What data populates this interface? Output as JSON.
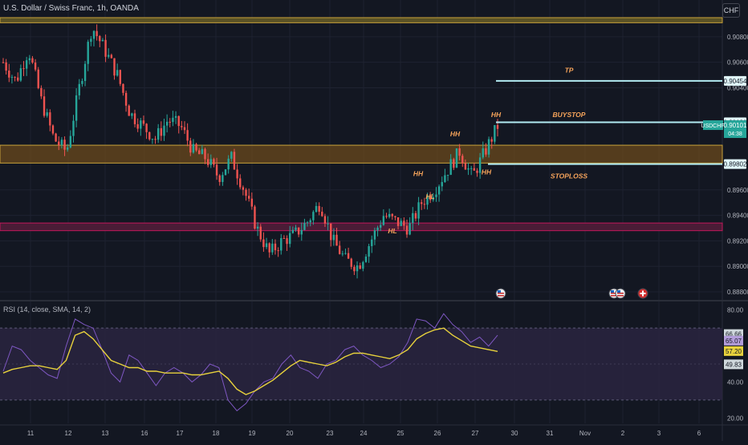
{
  "header": {
    "symbol": "U.S. Dollar / Swiss Franc, 1h, OANDA",
    "currency": "CHF"
  },
  "rsi_header": "RSI (14, close, SMA, 14, 2)",
  "colors": {
    "background": "#131722",
    "grid": "#1e2230",
    "up": "#26a69a",
    "down": "#ef5350",
    "orange_zone": "#6b4a1c",
    "orange_line": "#c8a13a",
    "pink_zone": "#4a1c36",
    "pink_line": "#c2185b",
    "tp_line": "#b2ebf2",
    "annotation": "#f5a35a",
    "rsi_line": "#7e57c2",
    "rsi_ma": "#e8d23c",
    "rsi_band": "#2a2440"
  },
  "chart_data": [
    {
      "type": "candlestick",
      "name": "USDCHF",
      "x_tick_labels": [
        "11",
        "12",
        "13",
        "16",
        "17",
        "18",
        "19",
        "20",
        "23",
        "24",
        "25",
        "26",
        "27",
        "30",
        "31",
        "Nov",
        "2",
        "3",
        "6"
      ],
      "price_ticks": [
        "0.90800",
        "0.90600",
        "0.90400",
        "0.89600",
        "0.89400",
        "0.89200",
        "0.89000",
        "0.88800"
      ],
      "ylim": [
        0.8875,
        0.9095
      ],
      "close_path": [
        [
          "11",
          0.906
        ],
        [
          "11",
          0.9045
        ],
        [
          "11",
          0.907
        ],
        [
          "12",
          0.903
        ],
        [
          "12",
          0.9
        ],
        [
          "12",
          0.899
        ],
        [
          "13",
          0.904
        ],
        [
          "13",
          0.9088
        ],
        [
          "13",
          0.907
        ],
        [
          "13",
          0.905
        ],
        [
          "16",
          0.902
        ],
        [
          "16",
          0.901
        ],
        [
          "17",
          0.9
        ],
        [
          "17",
          0.9015
        ],
        [
          "18",
          0.901
        ],
        [
          "18",
          0.899
        ],
        [
          "18",
          0.8985
        ],
        [
          "19",
          0.897
        ],
        [
          "19",
          0.8985
        ],
        [
          "19",
          0.896
        ],
        [
          "20",
          0.893
        ],
        [
          "20",
          0.891
        ],
        [
          "20",
          0.892
        ],
        [
          "23",
          0.8925
        ],
        [
          "23",
          0.8935
        ],
        [
          "23",
          0.895
        ],
        [
          "24",
          0.892
        ],
        [
          "24",
          0.8905
        ],
        [
          "24",
          0.89
        ],
        [
          "24",
          0.892
        ],
        [
          "25",
          0.894
        ],
        [
          "25",
          0.8935
        ],
        [
          "25",
          0.893
        ],
        [
          "25",
          0.895
        ],
        [
          "26",
          0.896
        ],
        [
          "26",
          0.8975
        ],
        [
          "26",
          0.899
        ],
        [
          "27",
          0.897
        ],
        [
          "27",
          0.899
        ],
        [
          "27",
          0.901
        ]
      ],
      "levels": {
        "top_band": {
          "from": 0.9095,
          "to": 0.9091
        },
        "orange_zone": {
          "from": 0.8995,
          "to": 0.8981
        },
        "pink_zone": {
          "from": 0.8934,
          "to": 0.8928
        },
        "tp": 0.90454,
        "buystop": 0.9013,
        "stoploss": 0.89802
      },
      "price_labels": {
        "tp": "0.90454",
        "buystop": "0.90130",
        "symbol": "USDCHF",
        "last": "0.90101",
        "countdown": "04:38",
        "stoploss": "0.89802"
      },
      "annotations": [
        {
          "text": "TP",
          "x": "30",
          "y": 0.9052
        },
        {
          "text": "BUYSTOP",
          "x": "30",
          "y": 0.9017
        },
        {
          "text": "STOPLOSS",
          "x": "30",
          "y": 0.8969
        },
        {
          "text": "HH",
          "x": "27",
          "y": 0.9017
        },
        {
          "text": "HH",
          "x": "26",
          "y": 0.9002
        },
        {
          "text": "HH",
          "x": "25",
          "y": 0.8971
        },
        {
          "text": "HH",
          "x": "27",
          "y": 0.8972
        },
        {
          "text": "HL",
          "x": "26",
          "y": 0.8953
        },
        {
          "text": "HL",
          "x": "25",
          "y": 0.8926
        }
      ],
      "event_icons": [
        "flag-us",
        "flag-us",
        "flag-us",
        "flag-ch"
      ]
    },
    {
      "type": "line",
      "name": "RSI",
      "y_ticks": [
        "80.00",
        "40.00",
        "20.00"
      ],
      "ylim": [
        17,
        83
      ],
      "band": [
        70,
        30
      ],
      "value_labels": {
        "upper": "66.66",
        "rsi": "65.07",
        "ma": "57.20",
        "lower": "49.83"
      },
      "rsi_path": [
        46,
        60,
        58,
        52,
        48,
        44,
        42,
        60,
        75,
        72,
        70,
        58,
        45,
        40,
        55,
        52,
        45,
        38,
        45,
        48,
        45,
        40,
        44,
        50,
        48,
        30,
        24,
        28,
        35,
        40,
        42,
        50,
        55,
        48,
        46,
        42,
        50,
        52,
        58,
        60,
        55,
        52,
        48,
        50,
        54,
        62,
        75,
        74,
        70,
        78,
        72,
        68,
        62,
        65,
        60,
        66
      ],
      "ma_path": [
        45,
        47,
        48,
        49,
        49,
        48,
        47,
        52,
        66,
        68,
        64,
        58,
        52,
        50,
        48,
        48,
        46,
        46,
        45,
        45,
        45,
        44,
        44,
        45,
        46,
        42,
        36,
        33,
        35,
        38,
        41,
        45,
        49,
        52,
        51,
        50,
        49,
        51,
        54,
        56,
        56,
        55,
        54,
        53,
        55,
        58,
        64,
        67,
        69,
        70,
        66,
        63,
        60,
        59,
        58,
        57
      ]
    }
  ]
}
